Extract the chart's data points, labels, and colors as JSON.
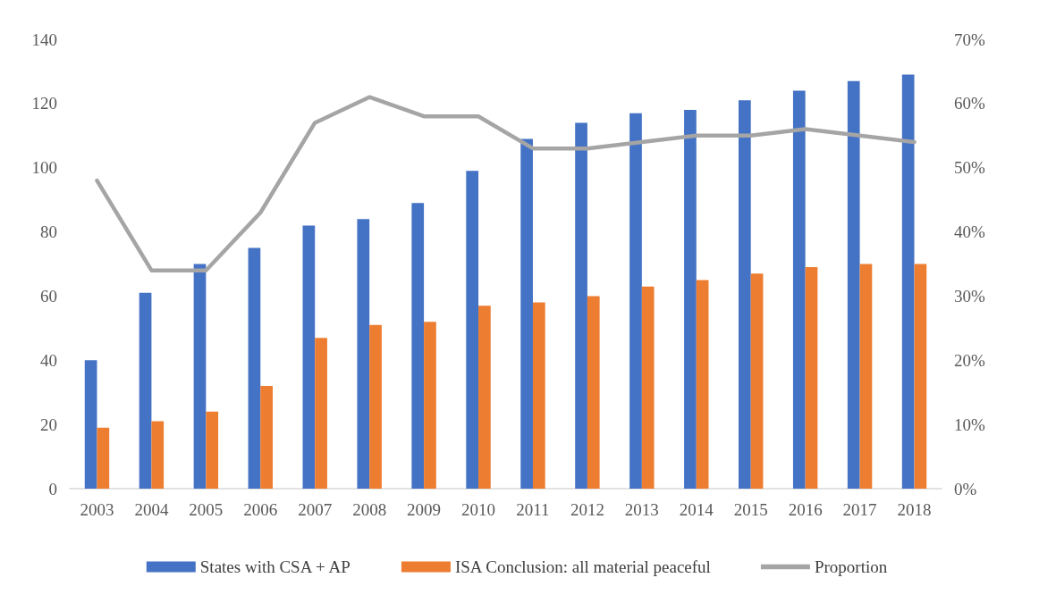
{
  "chart_data": {
    "type": "bar",
    "categories": [
      "2003",
      "2004",
      "2005",
      "2006",
      "2007",
      "2008",
      "2009",
      "2010",
      "2011",
      "2012",
      "2013",
      "2014",
      "2015",
      "2016",
      "2017",
      "2018"
    ],
    "series": [
      {
        "name": "States with CSA + AP",
        "color": "#4472c4",
        "values": [
          40,
          61,
          70,
          75,
          82,
          84,
          89,
          99,
          109,
          114,
          117,
          118,
          121,
          124,
          127,
          129
        ]
      },
      {
        "name": "ISA Conclusion: all material peaceful",
        "color": "#ed7d31",
        "values": [
          19,
          21,
          24,
          32,
          47,
          51,
          52,
          57,
          58,
          60,
          63,
          65,
          67,
          69,
          70,
          70
        ]
      },
      {
        "name": "Proportion",
        "type": "line",
        "axis": "y2",
        "color": "#a5a5a5",
        "values": [
          48,
          34,
          34,
          43,
          57,
          61,
          58,
          58,
          53,
          53,
          54,
          55,
          55,
          56,
          55,
          54
        ]
      }
    ],
    "ylim": [
      0,
      140
    ],
    "yticks": [
      0,
      20,
      40,
      60,
      80,
      100,
      120,
      140
    ],
    "y2lim": [
      0,
      70
    ],
    "y2ticks": [
      {
        "value": 0,
        "label": "0%"
      },
      {
        "value": 10,
        "label": "10%"
      },
      {
        "value": 20,
        "label": "20%"
      },
      {
        "value": 30,
        "label": "30%"
      },
      {
        "value": 40,
        "label": "40%"
      },
      {
        "value": 50,
        "label": "50%"
      },
      {
        "value": 60,
        "label": "60%"
      },
      {
        "value": 70,
        "label": "70%"
      }
    ],
    "grid": false,
    "legend": "bottom",
    "marker": "none",
    "line_style": "solid"
  }
}
